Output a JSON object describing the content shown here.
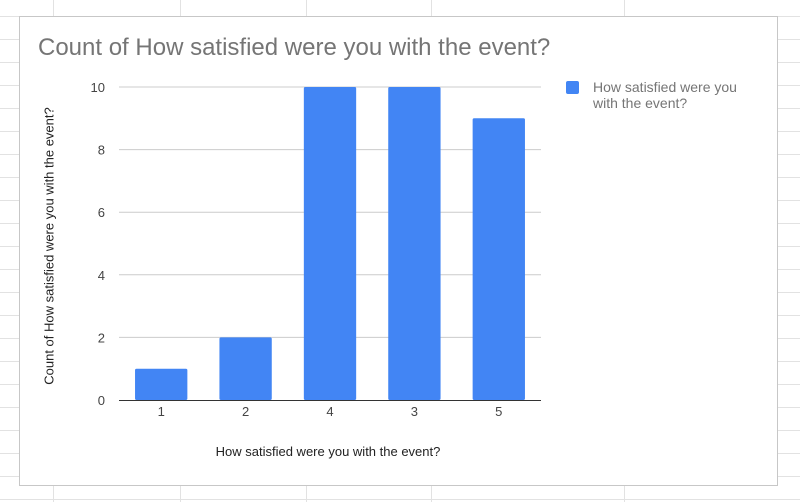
{
  "chart_data": {
    "type": "bar",
    "title": "Count of How satisfied were you with the event?",
    "xlabel": "How satisfied were you with the event?",
    "ylabel": "Count of How satisfied were you with the event?",
    "categories": [
      "1",
      "2",
      "4",
      "3",
      "5"
    ],
    "series": [
      {
        "name": "How satisfied were you with the event?",
        "values": [
          1,
          2,
          10,
          10,
          9
        ],
        "color": "#4285f4"
      }
    ],
    "ylim": [
      0,
      10
    ],
    "yticks": [
      "0",
      "2",
      "4",
      "6",
      "8",
      "10"
    ],
    "grid": true,
    "legend_position": "right"
  }
}
